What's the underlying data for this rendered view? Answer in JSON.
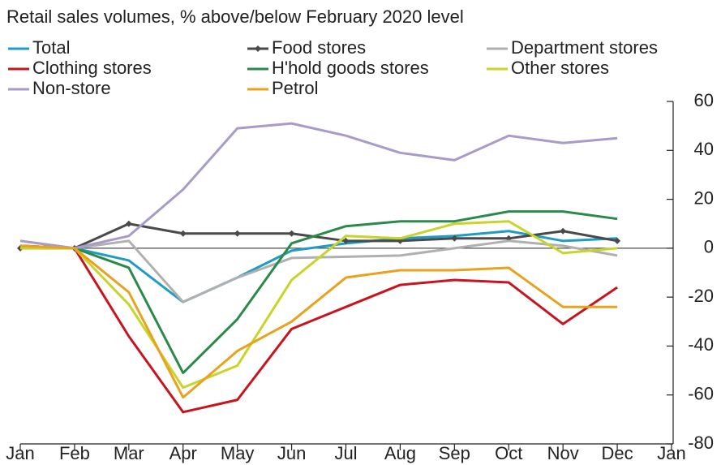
{
  "chart_data": {
    "type": "line",
    "title": "Retail sales volumes, % above/below February 2020 level",
    "categories": [
      "Jan",
      "Feb",
      "Mar",
      "Apr",
      "May",
      "Jun",
      "Jul",
      "Aug",
      "Sep",
      "Oct",
      "Nov",
      "Dec",
      "Jan"
    ],
    "series": [
      {
        "name": "Total",
        "color": "#1f9cc4",
        "values": [
          1,
          0,
          -5,
          -22,
          -12,
          -1,
          2,
          4,
          5,
          7,
          3,
          4,
          null
        ]
      },
      {
        "name": "Food stores",
        "color": "#4a4a4a",
        "marker": "diamond",
        "values": [
          0,
          0,
          10,
          6,
          6,
          6,
          3,
          3,
          4,
          4,
          7,
          3,
          null
        ]
      },
      {
        "name": "Department stores",
        "color": "#b0b0b0",
        "values": [
          3,
          0,
          3,
          -22,
          -12,
          -4,
          -3.5,
          -3,
          0,
          3,
          1,
          -3,
          null
        ]
      },
      {
        "name": "Clothing stores",
        "color": "#c8141e",
        "values": [
          1,
          0,
          -36,
          -67,
          -62,
          -33,
          -24,
          -15,
          -13,
          -14,
          -31,
          -16,
          null
        ]
      },
      {
        "name": "H'hold goods stores",
        "color": "#2a8a4a",
        "values": [
          0,
          0,
          -8,
          -51,
          -29,
          2,
          9,
          11,
          11,
          15,
          15,
          12,
          null
        ]
      },
      {
        "name": "Other stores",
        "color": "#c8d42a",
        "values": [
          0,
          0,
          -23,
          -57,
          -48,
          -13,
          5,
          4,
          10,
          11,
          -2,
          0,
          null
        ]
      },
      {
        "name": "Non-store",
        "color": "#a99bc9",
        "values": [
          3,
          0,
          5,
          24,
          49,
          51,
          46,
          39,
          36,
          46,
          43,
          45,
          null
        ]
      },
      {
        "name": "Petrol",
        "color": "#e8a21e",
        "values": [
          1,
          0,
          -18,
          -61,
          -42,
          -30,
          -12,
          -9,
          -9,
          -8,
          -24,
          -24,
          null
        ]
      }
    ],
    "ylim": [
      -80,
      60
    ],
    "yticks": [
      60,
      40,
      20,
      0,
      -20,
      -40,
      -60,
      -80
    ],
    "y_axis_side": "right",
    "zero_line": true,
    "grid": false,
    "legend_position": "top"
  }
}
